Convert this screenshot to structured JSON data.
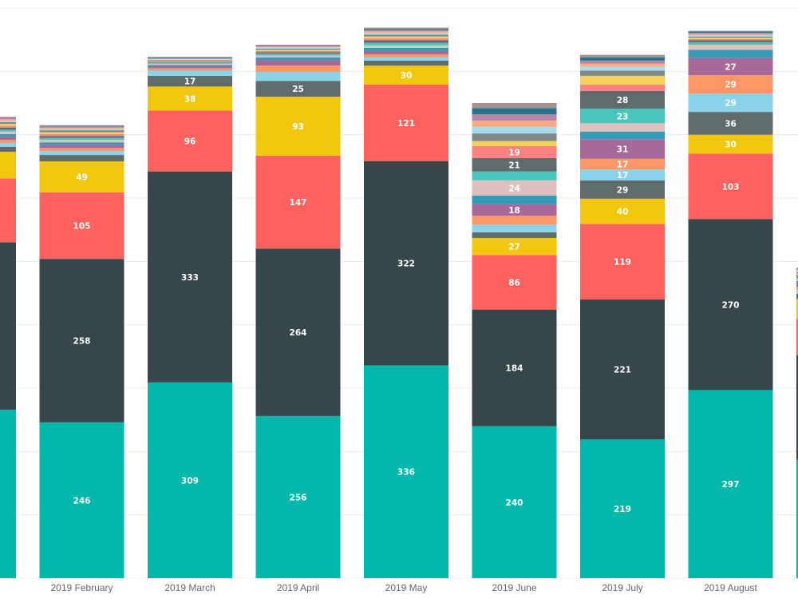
{
  "chart_data": {
    "type": "stacked_bar",
    "categories": [
      null,
      "2019 February",
      "2019 March",
      "2019 April",
      "2019 May",
      "2019 June",
      "2019 July",
      "2019 August",
      null
    ],
    "ylim": [
      0,
      900
    ],
    "gridlines": [
      0,
      100,
      200,
      300,
      400,
      500,
      600,
      700,
      800,
      900
    ],
    "grid": true,
    "series": [
      {
        "color": "#01B8AA",
        "values": [
          266,
          246,
          309,
          256,
          336,
          240,
          219,
          297,
          187
        ]
      },
      {
        "color": "#374649",
        "values": [
          264,
          258,
          333,
          264,
          322,
          184,
          221,
          270,
          165
        ]
      },
      {
        "color": "#FD625E",
        "values": [
          101,
          105,
          96,
          147,
          121,
          86,
          119,
          103,
          57
        ]
      },
      {
        "color": "#F2C80F",
        "values": [
          42,
          49,
          38,
          93,
          30,
          27,
          40,
          30,
          32
        ]
      },
      {
        "color": "#5F6B6D",
        "values": [
          8,
          10,
          17,
          25,
          8,
          9,
          29,
          36,
          8
        ]
      },
      {
        "color": "#8AD4EB",
        "values": [
          6,
          6,
          8,
          14,
          5,
          12,
          17,
          29,
          6
        ]
      },
      {
        "color": "#FE9666",
        "values": [
          5,
          5,
          4,
          10,
          5,
          14,
          17,
          29,
          5
        ]
      },
      {
        "color": "#A66999",
        "values": [
          5,
          5,
          3,
          9,
          5,
          18,
          31,
          27,
          5
        ]
      },
      {
        "color": "#3599B8",
        "values": [
          4,
          4,
          2,
          4,
          5,
          14,
          12,
          13,
          4
        ]
      },
      {
        "color": "#DFBFBF",
        "values": [
          4,
          4,
          2,
          3,
          4,
          24,
          13,
          8,
          3
        ]
      },
      {
        "color": "#4AC5BB",
        "values": [
          3,
          3,
          2,
          3,
          4,
          14,
          23,
          4,
          3
        ]
      },
      {
        "color": "#5F6B6D",
        "values": [
          3,
          3,
          1,
          2,
          4,
          21,
          28,
          3,
          2
        ]
      },
      {
        "color": "#FB8281",
        "values": [
          3,
          3,
          1,
          2,
          3,
          19,
          10,
          2,
          2
        ]
      },
      {
        "color": "#F4D25A",
        "values": [
          3,
          3,
          1,
          2,
          3,
          8,
          14,
          2,
          2
        ]
      },
      {
        "color": "#7F898A",
        "values": [
          3,
          3,
          1,
          2,
          3,
          12,
          8,
          2,
          2
        ]
      },
      {
        "color": "#A4DDEE",
        "values": [
          2,
          2,
          1,
          2,
          3,
          10,
          6,
          2,
          2
        ]
      },
      {
        "color": "#FDAB89",
        "values": [
          2,
          2,
          1,
          1,
          2,
          10,
          5,
          2,
          2
        ]
      },
      {
        "color": "#B687AC",
        "values": [
          2,
          2,
          1,
          1,
          2,
          10,
          5,
          2,
          1
        ]
      },
      {
        "color": "#28738A",
        "values": [
          1,
          1,
          1,
          1,
          2,
          10,
          5,
          2,
          1
        ]
      },
      {
        "color": "#A78F8F",
        "values": [
          1,
          1,
          1,
          1,
          2,
          8,
          4,
          1,
          1
        ]
      }
    ]
  }
}
